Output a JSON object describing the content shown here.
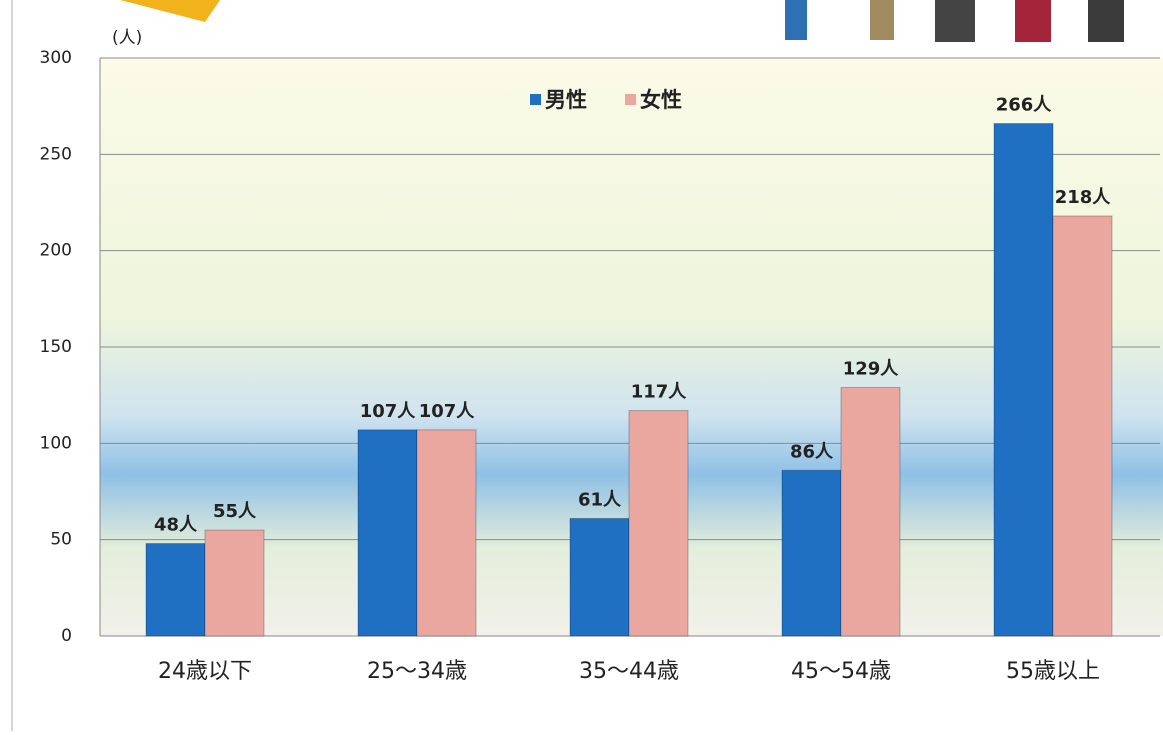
{
  "chart_data": {
    "type": "bar",
    "y_label": "(人)",
    "categories": [
      "24歳以下",
      "25～34歳",
      "35～44歳",
      "45～54歳",
      "55歳以上"
    ],
    "series": [
      {
        "name": "男性",
        "color": "#1f6fc2",
        "values": [
          48,
          107,
          61,
          86,
          266
        ],
        "value_labels": [
          "48人",
          "107人",
          "61人",
          "86人",
          "266人"
        ]
      },
      {
        "name": "女性",
        "color": "#e9a7a0",
        "values": [
          55,
          107,
          117,
          129,
          218
        ],
        "value_labels": [
          "55人",
          "107人",
          "117人",
          "129人",
          "218人"
        ]
      }
    ],
    "ylim": [
      0,
      300
    ],
    "yticks": [
      0,
      50,
      100,
      150,
      200,
      250,
      300
    ],
    "grid": true
  }
}
